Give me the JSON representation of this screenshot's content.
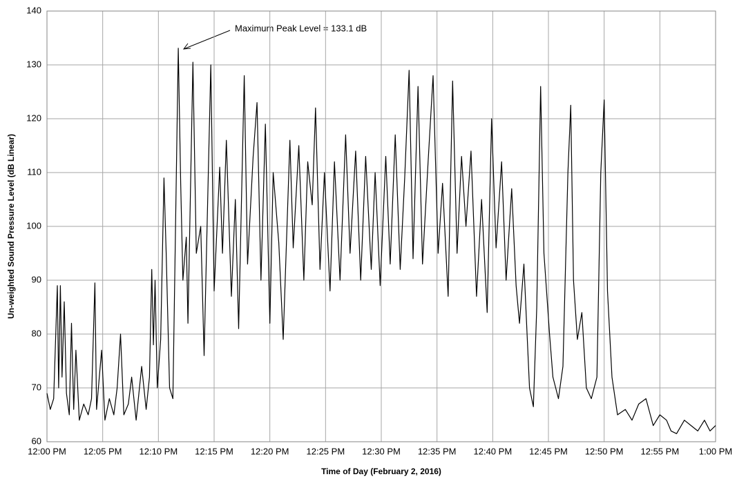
{
  "chart_data": {
    "type": "line",
    "x_label": "Time of Day (February 2, 2016)",
    "y_label": "Un-weighted Sound Pressure Level (dB Linear)",
    "annotation": "Maximum Peak Level = 133.1 dB",
    "color": "#000000",
    "grid": true,
    "xlim": [
      0,
      60
    ],
    "ylim": [
      60,
      140
    ],
    "xticks": [
      {
        "value": 0,
        "label": "12:00 PM"
      },
      {
        "value": 5,
        "label": "12:05 PM"
      },
      {
        "value": 10,
        "label": "12:10 PM"
      },
      {
        "value": 15,
        "label": "12:15 PM"
      },
      {
        "value": 20,
        "label": "12:20 PM"
      },
      {
        "value": 25,
        "label": "12:25 PM"
      },
      {
        "value": 30,
        "label": "12:30 PM"
      },
      {
        "value": 35,
        "label": "12:35 PM"
      },
      {
        "value": 40,
        "label": "12:40 PM"
      },
      {
        "value": 45,
        "label": "12:45 PM"
      },
      {
        "value": 50,
        "label": "12:50 PM"
      },
      {
        "value": 55,
        "label": "12:55 PM"
      },
      {
        "value": 60,
        "label": "1:00 PM"
      }
    ],
    "yticks": [
      60,
      70,
      80,
      90,
      100,
      110,
      120,
      130,
      140
    ],
    "x": [
      0,
      0.3,
      0.6,
      0.93,
      1.05,
      1.2,
      1.35,
      1.55,
      1.75,
      2.0,
      2.2,
      2.4,
      2.6,
      2.9,
      3.3,
      3.7,
      4.0,
      4.3,
      4.45,
      4.9,
      5.2,
      5.6,
      6.0,
      6.3,
      6.6,
      6.9,
      7.3,
      7.6,
      8.0,
      8.5,
      8.9,
      9.2,
      9.4,
      9.55,
      9.7,
      9.9,
      10.2,
      10.5,
      10.7,
      11.0,
      11.3,
      11.78,
      12.0,
      12.2,
      12.5,
      12.65,
      13.1,
      13.4,
      13.8,
      14.1,
      14.7,
      15.0,
      15.5,
      15.75,
      16.1,
      16.55,
      16.9,
      17.2,
      17.7,
      18.0,
      18.5,
      18.85,
      19.2,
      19.6,
      20.0,
      20.3,
      20.8,
      21.2,
      21.8,
      22.1,
      22.6,
      23.05,
      23.4,
      23.8,
      24.1,
      24.5,
      24.9,
      25.4,
      25.8,
      26.3,
      26.8,
      27.2,
      27.7,
      28.15,
      28.6,
      29.1,
      29.45,
      29.9,
      30.4,
      30.8,
      31.25,
      31.7,
      32.1,
      32.5,
      32.85,
      33.3,
      33.7,
      34.2,
      34.65,
      35.1,
      35.5,
      36.0,
      36.4,
      36.8,
      37.2,
      37.6,
      38.05,
      38.55,
      39.0,
      39.5,
      39.9,
      40.3,
      40.8,
      41.2,
      41.7,
      42.1,
      42.4,
      42.8,
      43.3,
      43.65,
      43.95,
      44.3,
      44.6,
      45.1,
      45.4,
      45.9,
      46.3,
      46.75,
      47.0,
      47.25,
      47.6,
      48.0,
      48.4,
      48.85,
      49.35,
      49.7,
      50.0,
      50.3,
      50.7,
      51.2,
      51.9,
      52.5,
      53.1,
      53.75,
      54.4,
      55.0,
      55.6,
      56.0,
      56.5,
      57.2,
      57.8,
      58.4,
      59.0,
      59.5,
      60
    ],
    "values": [
      69,
      66,
      68,
      89,
      70,
      89,
      72,
      86,
      69,
      65,
      82,
      66,
      77,
      64,
      67,
      65,
      68,
      89.5,
      66,
      77,
      64,
      68,
      65,
      70,
      80,
      65,
      67,
      72,
      64,
      74,
      66,
      72,
      92,
      78,
      90,
      70,
      79,
      109,
      95,
      70,
      68,
      133.1,
      108,
      90,
      98,
      82,
      130.5,
      95,
      100,
      76,
      130,
      88,
      111,
      95,
      116,
      87,
      105,
      81,
      128,
      93,
      113,
      123,
      90,
      119,
      82,
      110,
      97,
      79,
      116,
      96,
      115,
      90,
      112,
      104,
      122,
      92,
      110,
      88,
      112,
      90,
      117,
      95,
      114,
      90,
      113,
      92,
      110,
      89,
      113,
      93,
      117,
      92,
      109,
      129,
      94,
      126,
      93,
      112,
      128,
      95,
      108,
      87,
      127,
      95,
      113,
      100,
      114,
      87,
      105,
      84,
      120,
      96,
      112,
      90,
      107,
      89,
      82,
      93,
      70,
      66.5,
      85,
      126,
      95,
      80,
      72,
      68,
      74,
      110,
      122.5,
      90,
      79,
      84,
      70,
      68,
      72,
      110,
      123.5,
      88,
      72,
      65,
      66,
      64,
      67,
      68,
      63,
      65,
      64,
      62,
      61.5,
      64,
      63,
      62,
      64,
      62,
      63
    ]
  }
}
